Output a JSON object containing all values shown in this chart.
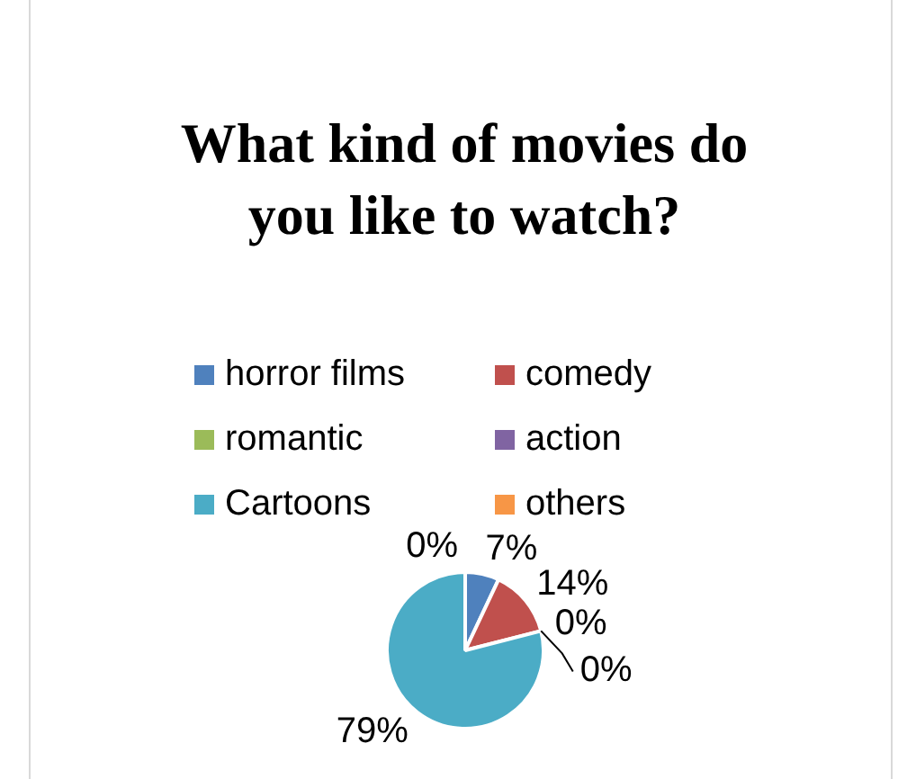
{
  "chart_data": {
    "type": "pie",
    "title": "What kind of movies do you like to watch?",
    "categories": [
      "horror films",
      "comedy",
      "romantic",
      "action",
      "Cartoons",
      "others"
    ],
    "values": [
      7,
      14,
      0,
      0,
      79,
      0
    ],
    "colors": [
      "#4f81bd",
      "#c0504d",
      "#9bbb59",
      "#8064a2",
      "#4bacc6",
      "#f79646"
    ],
    "value_labels": [
      "7%",
      "14%",
      "0%",
      "0%",
      "79%",
      "0%"
    ],
    "legend": "top"
  }
}
